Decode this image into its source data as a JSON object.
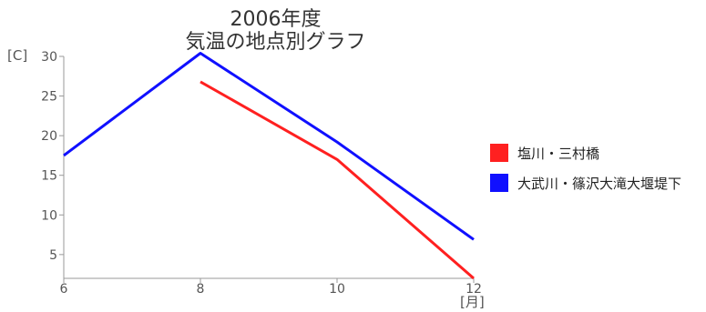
{
  "chart_data": {
    "type": "line",
    "title_line1": "2006年度",
    "title_line2": "気温の地点別グラフ",
    "ylabel": "[C]",
    "xlabel": "[月]",
    "x_ticks": [
      "6",
      "8",
      "10",
      "12"
    ],
    "y_ticks": [
      "5",
      "10",
      "15",
      "20",
      "25",
      "30"
    ],
    "xlim": [
      6,
      12
    ],
    "ylim": [
      2,
      30
    ],
    "grid": false,
    "legend_position": "right",
    "series": [
      {
        "name": "塩川・三村橋",
        "color": "#ff2020",
        "points": [
          [
            8,
            26.8
          ],
          [
            10,
            17.0
          ],
          [
            12,
            2.0
          ]
        ]
      },
      {
        "name": "大武川・篠沢大滝大堰堤下",
        "color": "#1010ff",
        "points": [
          [
            6,
            17.5
          ],
          [
            8,
            30.4
          ],
          [
            10,
            19.2
          ],
          [
            12,
            6.9
          ]
        ]
      }
    ]
  }
}
